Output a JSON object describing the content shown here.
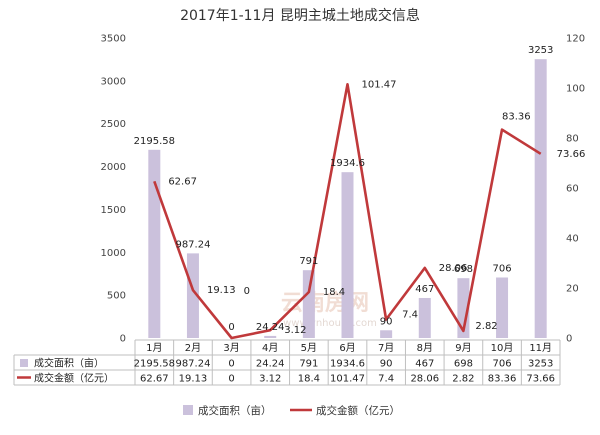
{
  "chart_data": {
    "type": "bar+line",
    "title": "2017年1-11月 昆明主城土地成交信息",
    "categories": [
      "1月",
      "2月",
      "3月",
      "4月",
      "5月",
      "6月",
      "7月",
      "8月",
      "9月",
      "10月",
      "11月"
    ],
    "series": [
      {
        "name": "成交面积（亩）",
        "type": "bar",
        "axis": "left",
        "color": "#cbc1dc",
        "values": [
          2195.58,
          987.24,
          0,
          24.24,
          791,
          1934.6,
          90,
          467,
          698,
          706,
          3253
        ],
        "labels": [
          "2195.58",
          "987.24",
          "0",
          "24.24",
          "791",
          "1934.6",
          "90",
          "467",
          "698",
          "706",
          "3253"
        ]
      },
      {
        "name": "成交金额（亿元）",
        "type": "line",
        "axis": "right",
        "color": "#c0393b",
        "values": [
          62.67,
          19.13,
          0,
          3.12,
          18.4,
          101.47,
          7.4,
          28.06,
          2.82,
          83.36,
          73.66
        ],
        "labels": [
          "62.67",
          "19.13",
          "0",
          "3.12",
          "18.4",
          "101.47",
          "7.4",
          "28.06",
          "2.82",
          "83.36",
          "73.66"
        ]
      }
    ],
    "y_left": {
      "min": 0,
      "max": 3500,
      "ticks": [
        "0",
        "500",
        "1000",
        "1500",
        "2000",
        "2500",
        "3000",
        "3500"
      ]
    },
    "y_right": {
      "min": 0,
      "max": 120,
      "ticks": [
        "0",
        "20",
        "40",
        "60",
        "80",
        "100",
        "120"
      ]
    },
    "grid": false,
    "legend": "bottom",
    "data_table": true
  },
  "watermark": {
    "text": "云南房网",
    "sub": "www.ynhouse.com"
  }
}
